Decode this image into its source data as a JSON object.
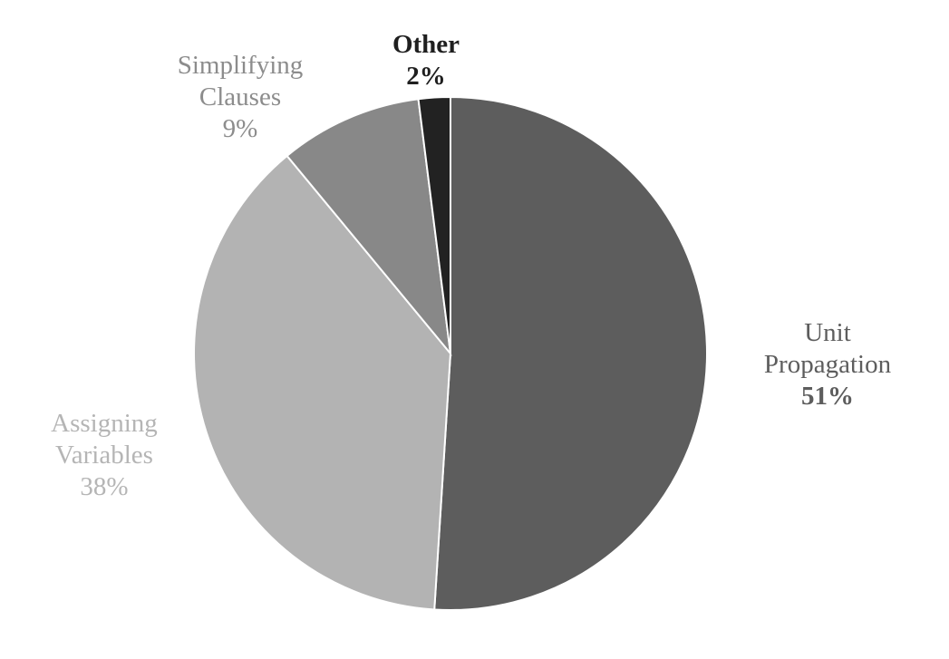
{
  "chart_data": {
    "type": "pie",
    "title": "",
    "slices": [
      {
        "label": "Unit Propagation",
        "label_lines": [
          "Unit",
          "Propagation"
        ],
        "percent_text": "51%",
        "value": 51,
        "color": "#5d5d5d",
        "label_color": "#5d5d5d",
        "label_bold_pct": true
      },
      {
        "label": "Assigning Variables",
        "label_lines": [
          "Assigning",
          "Variables"
        ],
        "percent_text": "38%",
        "value": 38,
        "color": "#b3b3b3",
        "label_color": "#b5b5b5",
        "label_bold_pct": false
      },
      {
        "label": "Simplifying Clauses",
        "label_lines": [
          "Simplifying",
          "Clauses"
        ],
        "percent_text": "9%",
        "value": 9,
        "color": "#888888",
        "label_color": "#8c8c8c",
        "label_bold_pct": false
      },
      {
        "label": "Other",
        "label_lines": [
          "Other"
        ],
        "percent_text": "2%",
        "value": 2,
        "color": "#222222",
        "label_color": "#1f1f1f",
        "label_bold_pct": true
      }
    ],
    "start_angle": "12 o'clock",
    "direction": "clockwise",
    "legend": "none",
    "background": "#ffffff"
  }
}
